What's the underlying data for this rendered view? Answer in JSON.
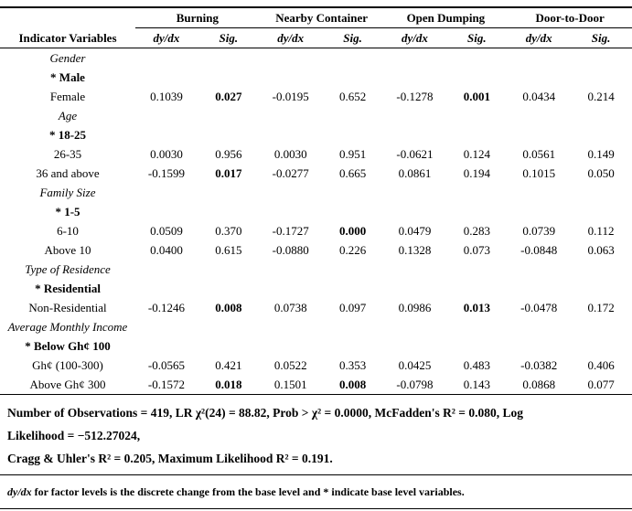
{
  "table": {
    "indicator_header": "Indicator Variables",
    "groups": [
      "Burning",
      "Nearby Container",
      "Open Dumping",
      "Door-to-Door"
    ],
    "sub_headers": [
      "dy/dx",
      "Sig."
    ],
    "rows": [
      {
        "type": "category",
        "label": "Gender"
      },
      {
        "type": "base",
        "label": "* Male"
      },
      {
        "type": "data",
        "label": "Female",
        "values": [
          "0.1039",
          "0.027",
          "-0.0195",
          "0.652",
          "-0.1278",
          "0.001",
          "0.0434",
          "0.214"
        ],
        "bold": [
          false,
          true,
          false,
          false,
          false,
          true,
          false,
          false
        ]
      },
      {
        "type": "category",
        "label": "Age"
      },
      {
        "type": "base",
        "label": "* 18-25"
      },
      {
        "type": "data",
        "label": "26-35",
        "values": [
          "0.0030",
          "0.956",
          "0.0030",
          "0.951",
          "-0.0621",
          "0.124",
          "0.0561",
          "0.149"
        ],
        "bold": [
          false,
          false,
          false,
          false,
          false,
          false,
          false,
          false
        ]
      },
      {
        "type": "data",
        "label": "36 and above",
        "values": [
          "-0.1599",
          "0.017",
          "-0.0277",
          "0.665",
          "0.0861",
          "0.194",
          "0.1015",
          "0.050"
        ],
        "bold": [
          false,
          true,
          false,
          false,
          false,
          false,
          false,
          false
        ]
      },
      {
        "type": "category",
        "label": "Family Size"
      },
      {
        "type": "base",
        "label": "* 1-5"
      },
      {
        "type": "data",
        "label": "6-10",
        "values": [
          "0.0509",
          "0.370",
          "-0.1727",
          "0.000",
          "0.0479",
          "0.283",
          "0.0739",
          "0.112"
        ],
        "bold": [
          false,
          false,
          false,
          true,
          false,
          false,
          false,
          false
        ]
      },
      {
        "type": "data",
        "label": "Above 10",
        "values": [
          "0.0400",
          "0.615",
          "-0.0880",
          "0.226",
          "0.1328",
          "0.073",
          "-0.0848",
          "0.063"
        ],
        "bold": [
          false,
          false,
          false,
          false,
          false,
          false,
          false,
          false
        ]
      },
      {
        "type": "category",
        "label": "Type of Residence"
      },
      {
        "type": "base",
        "label": "* Residential"
      },
      {
        "type": "data",
        "label": "Non-Residential",
        "values": [
          "-0.1246",
          "0.008",
          "0.0738",
          "0.097",
          "0.0986",
          "0.013",
          "-0.0478",
          "0.172"
        ],
        "bold": [
          false,
          true,
          false,
          false,
          false,
          true,
          false,
          false
        ]
      },
      {
        "type": "category",
        "label": "Average Monthly Income"
      },
      {
        "type": "base",
        "label": "* Below Gh¢ 100"
      },
      {
        "type": "data",
        "label": "Gh¢ (100-300)",
        "values": [
          "-0.0565",
          "0.421",
          "0.0522",
          "0.353",
          "0.0425",
          "0.483",
          "-0.0382",
          "0.406"
        ],
        "bold": [
          false,
          false,
          false,
          false,
          false,
          false,
          false,
          false
        ]
      },
      {
        "type": "data",
        "label": "Above Gh¢ 300",
        "values": [
          "-0.1572",
          "0.018",
          "0.1501",
          "0.008",
          "-0.0798",
          "0.143",
          "0.0868",
          "0.077"
        ],
        "bold": [
          false,
          true,
          false,
          true,
          false,
          false,
          false,
          false
        ]
      }
    ]
  },
  "footer": {
    "lines": [
      "Number of Observations = 419, LR χ²(24) = 88.82, Prob > χ² = 0.0000, McFadden's R² = 0.080, Log",
      "Likelihood = −512.27024,",
      "Cragg & Uhler's R² = 0.205, Maximum Likelihood R² = 0.191."
    ]
  },
  "footnote": {
    "segments": [
      {
        "text": "dy/dx",
        "italic": true
      },
      {
        "text": " for factor levels is the discrete change from the base level and * indicate base level variables.",
        "italic": false
      }
    ]
  }
}
